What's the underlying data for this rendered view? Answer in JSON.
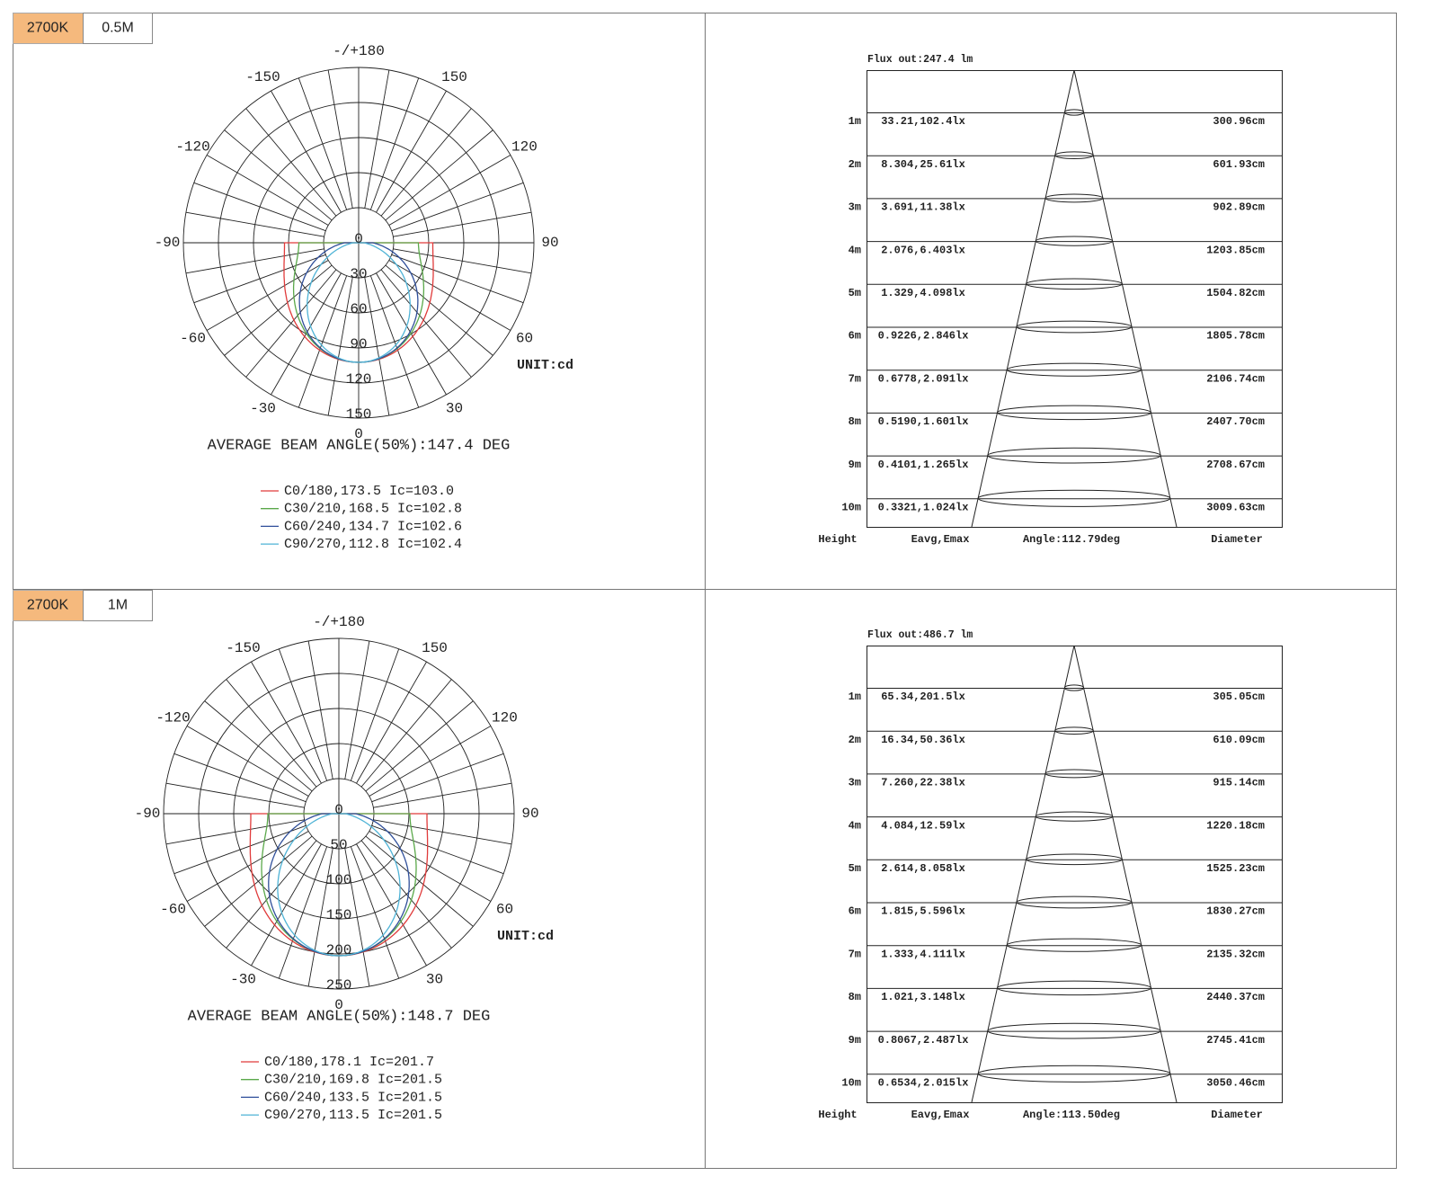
{
  "panels": [
    {
      "tag": "2700K",
      "distance": "0.5M",
      "polar": {
        "angle_labels": [
          "-/+180",
          "150",
          "120",
          "90",
          "60",
          "30",
          "0",
          "-30",
          "-60",
          "-90",
          "-120",
          "-150"
        ],
        "radial_labels": [
          "0",
          "30",
          "60",
          "90",
          "120",
          "150"
        ],
        "unit": "UNIT:cd",
        "beam_angle": "AVERAGE BEAM ANGLE(50%):147.4 DEG",
        "legend": [
          {
            "text": "C0/180,173.5 Ic=103.0",
            "color": "#e03b3b"
          },
          {
            "text": "C30/210,168.5 Ic=102.8",
            "color": "#5aa84a"
          },
          {
            "text": "C60/240,134.7 Ic=102.6",
            "color": "#2f4f9a"
          },
          {
            "text": "C90/270,112.8 Ic=102.4",
            "color": "#4fb3d6"
          }
        ]
      },
      "cone": {
        "flux": "Flux out:247.4 lm",
        "rows": [
          [
            "1m",
            "33.21,102.4lx",
            "300.96cm"
          ],
          [
            "2m",
            "8.304,25.61lx",
            "601.93cm"
          ],
          [
            "3m",
            "3.691,11.38lx",
            "902.89cm"
          ],
          [
            "4m",
            "2.076,6.403lx",
            "1203.85cm"
          ],
          [
            "5m",
            "1.329,4.098lx",
            "1504.82cm"
          ],
          [
            "6m",
            "0.9226,2.846lx",
            "1805.78cm"
          ],
          [
            "7m",
            "0.6778,2.091lx",
            "2106.74cm"
          ],
          [
            "8m",
            "0.5190,1.601lx",
            "2407.70cm"
          ],
          [
            "9m",
            "0.4101,1.265lx",
            "2708.67cm"
          ],
          [
            "10m",
            "0.3321,1.024lx",
            "3009.63cm"
          ]
        ],
        "headers": [
          "Height",
          "Eavg,Emax",
          "Angle:112.79deg",
          "Diameter"
        ]
      }
    },
    {
      "tag": "2700K",
      "distance": "1M",
      "polar": {
        "angle_labels": [
          "-/+180",
          "150",
          "120",
          "90",
          "60",
          "30",
          "0",
          "-30",
          "-60",
          "-90",
          "-120",
          "-150"
        ],
        "radial_labels": [
          "0",
          "50",
          "100",
          "150",
          "200",
          "250"
        ],
        "unit": "UNIT:cd",
        "beam_angle": "AVERAGE BEAM ANGLE(50%):148.7 DEG",
        "legend": [
          {
            "text": "C0/180,178.1 Ic=201.7",
            "color": "#e03b3b"
          },
          {
            "text": "C30/210,169.8 Ic=201.5",
            "color": "#5aa84a"
          },
          {
            "text": "C60/240,133.5 Ic=201.5",
            "color": "#2f4f9a"
          },
          {
            "text": "C90/270,113.5 Ic=201.5",
            "color": "#4fb3d6"
          }
        ]
      },
      "cone": {
        "flux": "Flux out:486.7 lm",
        "rows": [
          [
            "1m",
            "65.34,201.5lx",
            "305.05cm"
          ],
          [
            "2m",
            "16.34,50.36lx",
            "610.09cm"
          ],
          [
            "3m",
            "7.260,22.38lx",
            "915.14cm"
          ],
          [
            "4m",
            "4.084,12.59lx",
            "1220.18cm"
          ],
          [
            "5m",
            "2.614,8.058lx",
            "1525.23cm"
          ],
          [
            "6m",
            "1.815,5.596lx",
            "1830.27cm"
          ],
          [
            "7m",
            "1.333,4.111lx",
            "2135.32cm"
          ],
          [
            "8m",
            "1.021,3.148lx",
            "2440.37cm"
          ],
          [
            "9m",
            "0.8067,2.487lx",
            "2745.41cm"
          ],
          [
            "10m",
            "0.6534,2.015lx",
            "3050.46cm"
          ]
        ],
        "headers": [
          "Height",
          "Eavg,Emax",
          "Angle:113.50deg",
          "Diameter"
        ]
      }
    }
  ]
}
